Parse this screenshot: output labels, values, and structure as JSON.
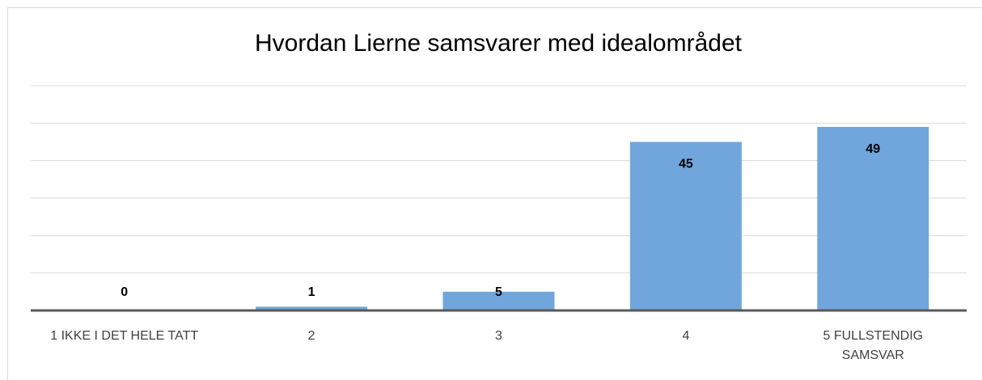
{
  "chart_data": {
    "type": "bar",
    "title": "Hvordan Lierne samsvarer med idealområdet",
    "categories": [
      "1 IKKE I DET HELE TATT",
      "2",
      "3",
      "4",
      "5 FULLSTENDIG SAMSVAR"
    ],
    "values": [
      0,
      1,
      5,
      45,
      49
    ],
    "color": "#70a6db",
    "ylim": [
      0,
      60
    ],
    "yticks": [
      0,
      10,
      20,
      30,
      40,
      50,
      60
    ],
    "grid": true
  }
}
